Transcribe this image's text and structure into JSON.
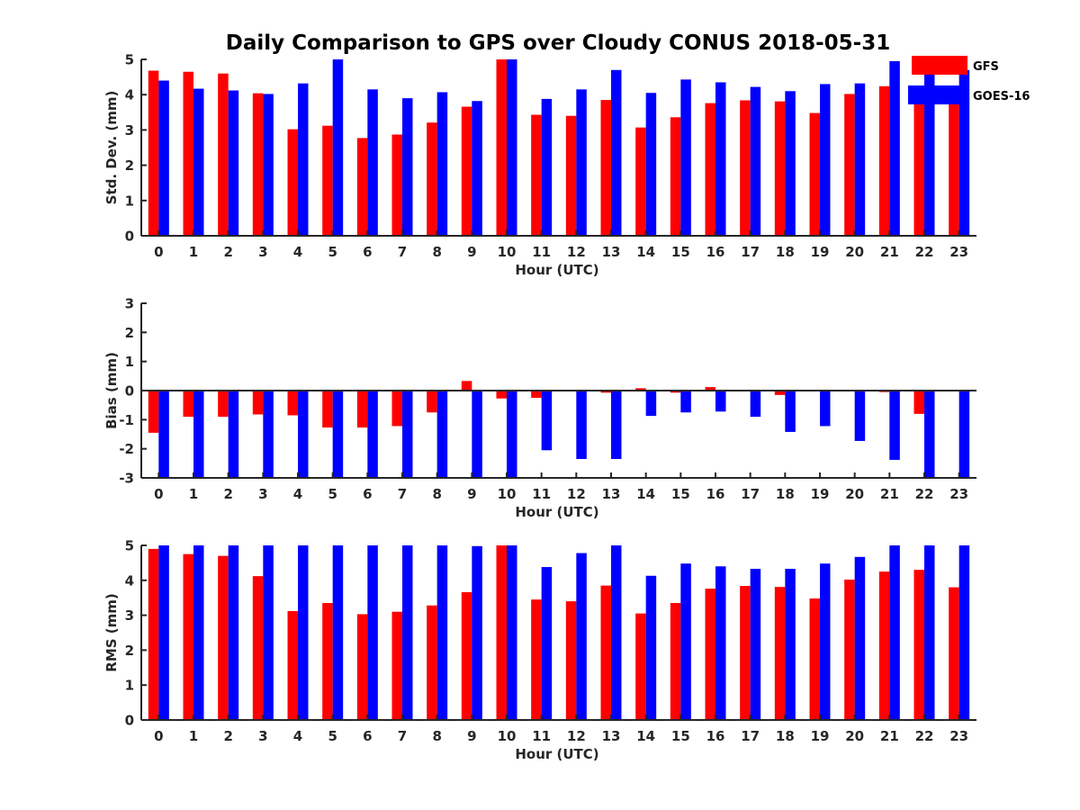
{
  "title": "Daily Comparison to GPS over Cloudy CONUS 2018-05-31",
  "colors": {
    "GFS": "#ff0000",
    "GOES-16": "#0000ff",
    "axis": "#262626"
  },
  "chart_data": [
    {
      "type": "bar",
      "categories": [
        "0",
        "1",
        "2",
        "3",
        "4",
        "5",
        "6",
        "7",
        "8",
        "9",
        "10",
        "11",
        "12",
        "13",
        "14",
        "15",
        "16",
        "17",
        "18",
        "19",
        "20",
        "21",
        "22",
        "23"
      ],
      "xlabel": "Hour (UTC)",
      "ylabel": "Std. Dev. (mm)",
      "ylim": [
        0,
        5
      ],
      "yticks": [
        "0",
        "1",
        "2",
        "3",
        "4",
        "5"
      ],
      "legend": "top-right",
      "series": [
        {
          "name": "GFS",
          "values": [
            4.68,
            4.65,
            4.6,
            4.04,
            3.02,
            3.12,
            2.77,
            2.87,
            3.21,
            3.66,
            5.0,
            3.43,
            3.4,
            3.85,
            3.07,
            3.36,
            3.76,
            3.84,
            3.81,
            3.48,
            4.02,
            4.24,
            4.22,
            3.8
          ]
        },
        {
          "name": "GOES-16",
          "values": [
            4.4,
            4.17,
            4.12,
            4.02,
            4.32,
            5.0,
            4.15,
            3.9,
            4.07,
            3.82,
            5.0,
            3.88,
            4.15,
            4.7,
            4.05,
            4.43,
            4.35,
            4.22,
            4.1,
            4.3,
            4.32,
            4.95,
            4.6,
            4.7
          ]
        }
      ]
    },
    {
      "type": "bar",
      "categories": [
        "0",
        "1",
        "2",
        "3",
        "4",
        "5",
        "6",
        "7",
        "8",
        "9",
        "10",
        "11",
        "12",
        "13",
        "14",
        "15",
        "16",
        "17",
        "18",
        "19",
        "20",
        "21",
        "22",
        "23"
      ],
      "xlabel": "Hour (UTC)",
      "ylabel": "Bias (mm)",
      "ylim": [
        -3,
        3
      ],
      "yticks": [
        "-3",
        "-2",
        "-1",
        "0",
        "1",
        "2",
        "3"
      ],
      "series": [
        {
          "name": "GFS",
          "values": [
            -1.45,
            -0.9,
            -0.9,
            -0.82,
            -0.85,
            -1.27,
            -1.27,
            -1.22,
            -0.75,
            0.33,
            -0.27,
            -0.25,
            0.0,
            -0.07,
            0.08,
            -0.07,
            0.12,
            -0.03,
            -0.15,
            0.0,
            -0.03,
            -0.05,
            -0.8,
            0.0
          ]
        },
        {
          "name": "GOES-16",
          "values": [
            -3.0,
            -3.0,
            -3.0,
            -3.0,
            -3.0,
            -3.0,
            -3.0,
            -3.0,
            -3.0,
            -3.0,
            -3.0,
            -2.05,
            -2.35,
            -2.35,
            -0.87,
            -0.75,
            -0.72,
            -0.9,
            -1.42,
            -1.22,
            -1.73,
            -2.38,
            -3.0,
            -3.0
          ]
        }
      ]
    },
    {
      "type": "bar",
      "categories": [
        "0",
        "1",
        "2",
        "3",
        "4",
        "5",
        "6",
        "7",
        "8",
        "9",
        "10",
        "11",
        "12",
        "13",
        "14",
        "15",
        "16",
        "17",
        "18",
        "19",
        "20",
        "21",
        "22",
        "23"
      ],
      "xlabel": "Hour (UTC)",
      "ylabel": "RMS (mm)",
      "ylim": [
        0,
        5
      ],
      "yticks": [
        "0",
        "1",
        "2",
        "3",
        "4",
        "5"
      ],
      "series": [
        {
          "name": "GFS",
          "values": [
            4.9,
            4.75,
            4.7,
            4.12,
            3.12,
            3.35,
            3.03,
            3.1,
            3.28,
            3.66,
            5.0,
            3.45,
            3.4,
            3.85,
            3.05,
            3.35,
            3.76,
            3.84,
            3.81,
            3.48,
            4.02,
            4.25,
            4.3,
            3.8
          ]
        },
        {
          "name": "GOES-16",
          "values": [
            5.0,
            5.0,
            5.0,
            5.0,
            5.0,
            5.0,
            5.0,
            5.0,
            5.0,
            4.98,
            5.0,
            4.38,
            4.78,
            5.0,
            4.13,
            4.48,
            4.4,
            4.33,
            4.33,
            4.48,
            4.67,
            5.0,
            5.0,
            5.0
          ]
        }
      ]
    }
  ]
}
